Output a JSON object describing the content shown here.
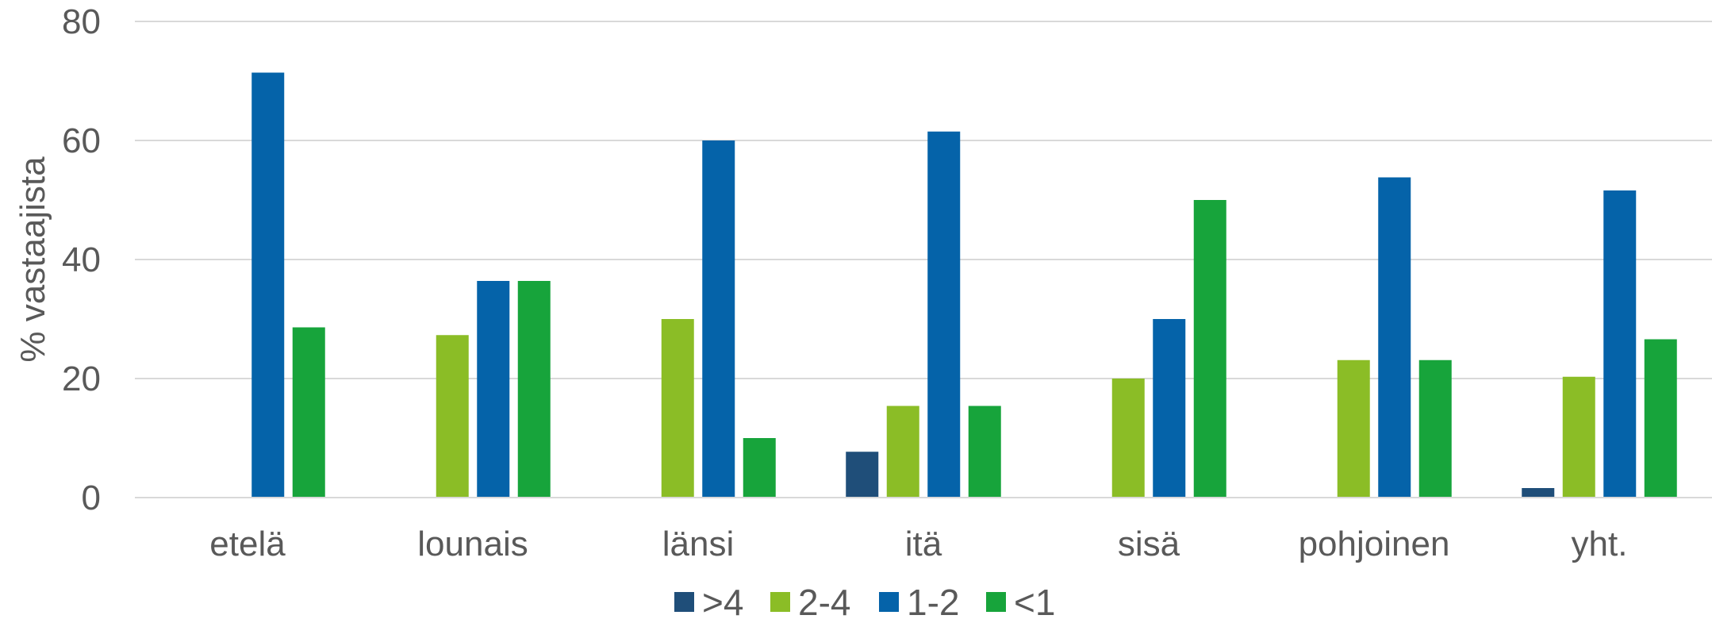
{
  "chart_data": {
    "type": "bar",
    "title": "",
    "xlabel": "",
    "ylabel": "% vastaajista",
    "ylim": [
      0,
      80
    ],
    "yticks": [
      0,
      20,
      40,
      60,
      80
    ],
    "grid": true,
    "legend_position": "bottom",
    "categories": [
      "etelä",
      "lounais",
      "länsi",
      "itä",
      "sisä",
      "pohjoinen",
      "yht."
    ],
    "series": [
      {
        "name": ">4",
        "color": "#1F4E79",
        "values": [
          0,
          0,
          0,
          7.7,
          0,
          0,
          1.6
        ]
      },
      {
        "name": "2-4",
        "color": "#8BBD26",
        "values": [
          0,
          27.3,
          30,
          15.4,
          20,
          23.1,
          20.3
        ]
      },
      {
        "name": "1-2",
        "color": "#0563A9",
        "values": [
          71.4,
          36.4,
          60,
          61.5,
          30,
          53.8,
          51.6
        ]
      },
      {
        "name": "<1",
        "color": "#17A43B",
        "values": [
          28.6,
          36.4,
          10,
          15.4,
          50,
          23.1,
          26.6
        ]
      }
    ]
  }
}
